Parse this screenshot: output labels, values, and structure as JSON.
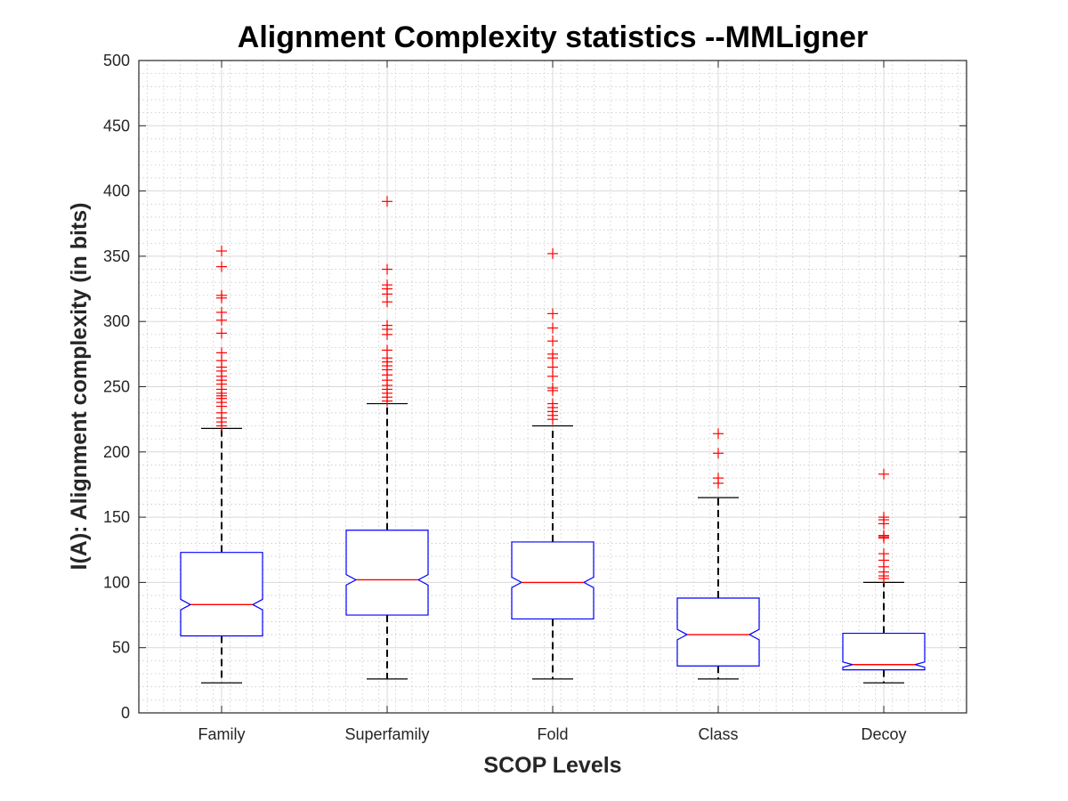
{
  "chart_data": {
    "type": "boxplot",
    "title": "Alignment Complexity statistics --MMLigner",
    "xlabel": "SCOP Levels",
    "ylabel": "I(A): Alignment complexity (in bits)",
    "ylim": [
      0,
      500
    ],
    "yticks": [
      "0",
      "50",
      "100",
      "150",
      "200",
      "250",
      "300",
      "350",
      "400",
      "450",
      "500"
    ],
    "grid": "major and minor",
    "notched": true,
    "colors": {
      "box": "#0000ff",
      "median": "#ff0000",
      "whisker": "#000000",
      "outlier": "#ff0000",
      "grid_major": "#d9d9d9",
      "grid_minor": "#c8c8c8"
    },
    "categories": [
      "Family",
      "Superfamily",
      "Fold",
      "Class",
      "Decoy"
    ],
    "series": [
      {
        "name": "Family",
        "whisker_low": 23,
        "q1": 59,
        "median": 83,
        "q3": 123,
        "whisker_high": 218,
        "notch_low": 79,
        "notch_high": 87,
        "outliers": [
          220,
          223,
          226,
          230,
          235,
          238,
          241,
          243,
          245,
          248,
          252,
          255,
          258,
          262,
          265,
          270,
          276,
          291,
          301,
          307,
          318,
          320,
          342,
          354
        ]
      },
      {
        "name": "Superfamily",
        "whisker_low": 26,
        "q1": 75,
        "median": 102,
        "q3": 140,
        "whisker_high": 237,
        "notch_low": 98,
        "notch_high": 106,
        "outliers": [
          239,
          242,
          245,
          248,
          251,
          255,
          259,
          263,
          266,
          269,
          272,
          278,
          290,
          294,
          297,
          315,
          321,
          325,
          328,
          340,
          392
        ]
      },
      {
        "name": "Fold",
        "whisker_low": 26,
        "q1": 72,
        "median": 100,
        "q3": 131,
        "whisker_high": 220,
        "notch_low": 96,
        "notch_high": 104,
        "outliers": [
          225,
          228,
          231,
          234,
          237,
          247,
          249,
          258,
          265,
          272,
          275,
          285,
          295,
          306,
          352
        ]
      },
      {
        "name": "Class",
        "whisker_low": 26,
        "q1": 36,
        "median": 60,
        "q3": 88,
        "whisker_high": 165,
        "notch_low": 56,
        "notch_high": 64,
        "outliers": [
          176,
          180,
          199,
          214
        ]
      },
      {
        "name": "Decoy",
        "whisker_low": 23,
        "q1": 33,
        "median": 37,
        "q3": 61,
        "whisker_high": 100,
        "notch_low": 35,
        "notch_high": 39,
        "outliers": [
          103,
          105,
          108,
          112,
          117,
          122,
          134,
          135,
          136,
          145,
          148,
          150,
          183
        ]
      }
    ]
  }
}
